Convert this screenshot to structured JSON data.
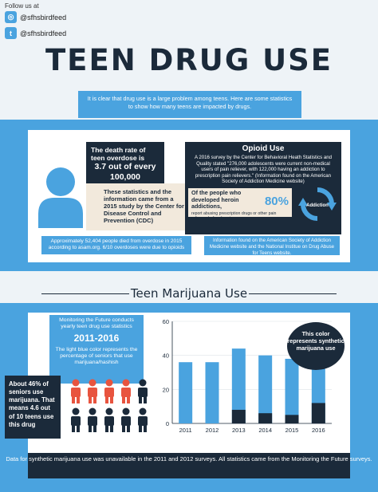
{
  "header": {
    "follow_label": "Follow us at",
    "twitter_handle": "@sfhsbirdfeed",
    "tumblr_handle": "@sfhsbirdfeed",
    "twitter_icon": "twitter-icon",
    "tumblr_icon": "tumblr-icon",
    "title": "TEEN DRUG USE",
    "intro": "It is clear that drug use is a large problem among teens. Here are some statistics to show how many teens are impacted by drugs."
  },
  "overdose": {
    "line1": "The death rate of teen overdose is",
    "line2": "3.7 out of every 100,000",
    "source": "These statistics and the information came from a 2015 study by the Center for Disease Control and Prevention (CDC)",
    "note": "Approximately 52,404 people died from overdose in 2015 according to asam.org. 6/10 overdoses were due to opioids"
  },
  "opioid": {
    "heading": "Opioid Use",
    "body": "A 2016 survey by the Center for Behavioral Heath Statistics and Quality stated \"276,000 adolescents were current non-medical users of pain reliever, with 122,000 having an addiction to prescription pain relievers.\" (Information found on the American Society of Addiction Medicine website)",
    "heroin_text": "Of the people who developed heroin addictions,",
    "heroin_pct": "80%",
    "heroin_small": "report abusing prescription drugs or other pain relievers before heroin",
    "cycle_label": "Addiction",
    "note": "Information found on the American Society of Addiction Medicine website and the National Institue on Drug Abuse for Teens website."
  },
  "marijuana": {
    "title": "Teen Marijuana Use",
    "mtf_text": "Monitoring the Future conducts yearly teen drug use statistics",
    "mtf_years": "2011-2016",
    "mtf_desc": "The light blue color represents the percentage of seniors that use marijuana/hashish",
    "seniors": "About 46% of seniors use marijuana. That means 4.6 out of 10 teens use this drug",
    "bubble": "This color represents synthetic marijuana use",
    "footer": "Data for synthetic marijuana use was unavailable in the 2011 and 2012 surveys. All statistics came from the Monitoring the Future surveys.",
    "figures": {
      "total": 10,
      "users": 4.6
    },
    "colors": {
      "marijuana": "#4aa3df",
      "synthetic": "#1b2a3a",
      "users": "#e8543f"
    }
  },
  "chart_data": {
    "type": "bar",
    "categories": [
      "2011",
      "2012",
      "2013",
      "2014",
      "2015",
      "2016"
    ],
    "series": [
      {
        "name": "marijuana/hashish",
        "values": [
          36,
          36,
          44,
          40,
          38,
          37
        ]
      },
      {
        "name": "synthetic marijuana",
        "values": [
          0,
          0,
          8,
          6,
          5,
          12
        ]
      }
    ],
    "yticks": [
      "0",
      "20",
      "40",
      "60"
    ],
    "ylim": [
      0,
      60
    ]
  }
}
